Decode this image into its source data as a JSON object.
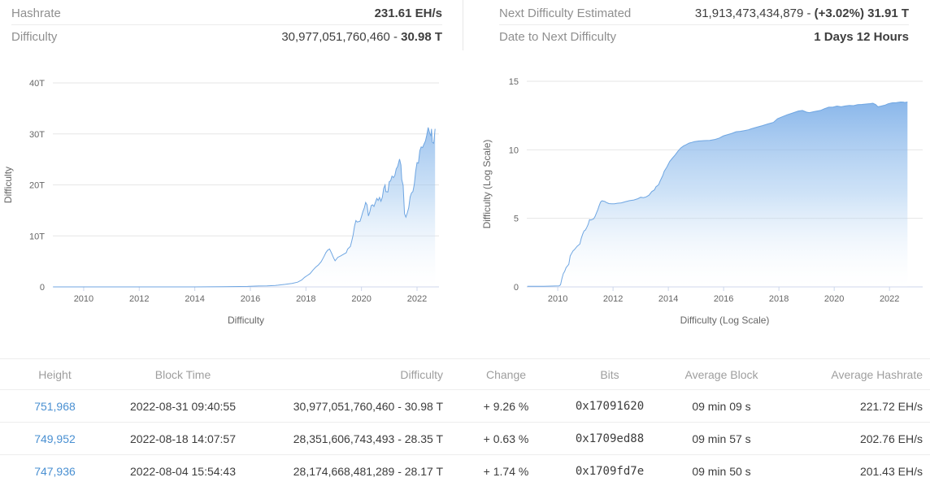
{
  "colors": {
    "accent_link": "#4a90d2",
    "positive_green": "#28a245",
    "chart_line": "#6fa6e2",
    "chart_fill_top": "#68a1e4",
    "chart_fill_mid": "#9ec6ef",
    "chart_fill_bottom": "#ffffff",
    "grid": "#e6e6e6",
    "axis_line": "#ccd6eb",
    "tick_text": "#666666",
    "label_gray": "#8f8f8f",
    "value_dark": "#3e3e3e"
  },
  "stats_left": {
    "rows": [
      {
        "label": "Hashrate",
        "value_plain": "",
        "value_bold": "231.61 EH/s"
      },
      {
        "label": "Difficulty",
        "value_plain": "30,977,051,760,460 - ",
        "value_bold": "30.98 T"
      }
    ]
  },
  "stats_right": {
    "rows": [
      {
        "label": "Next Difficulty Estimated",
        "value_plain": "31,913,473,434,879 - ",
        "value_bold": "(+3.02%) 31.91 T"
      },
      {
        "label": "Date to Next Difficulty",
        "value_plain": "",
        "value_bold": "1 Days 12 Hours"
      }
    ]
  },
  "chart_data": [
    {
      "type": "area",
      "title": "Difficulty",
      "xlabel": "Difficulty",
      "ylabel": "Difficulty",
      "grid": true,
      "legend": "none",
      "xlim": [
        2008.89,
        2022.79
      ],
      "ylim": [
        0,
        40
      ],
      "xticks": [
        2010,
        2012,
        2014,
        2016,
        2018,
        2020,
        2022
      ],
      "yticks": [
        {
          "v": 0,
          "label": "0"
        },
        {
          "v": 10,
          "label": "10T"
        },
        {
          "v": 20,
          "label": "20T"
        },
        {
          "v": 30,
          "label": "30T"
        },
        {
          "v": 40,
          "label": "40T"
        }
      ],
      "y_unit": "T (trillions of difficulty)",
      "points": [
        [
          2008.9,
          0
        ],
        [
          2010,
          0
        ],
        [
          2011,
          0
        ],
        [
          2012,
          0
        ],
        [
          2013,
          0
        ],
        [
          2014,
          0
        ],
        [
          2015,
          0.04
        ],
        [
          2015.9,
          0.09
        ],
        [
          2016.0,
          0.12
        ],
        [
          2016.3,
          0.17
        ],
        [
          2016.6,
          0.21
        ],
        [
          2016.9,
          0.28
        ],
        [
          2017.0,
          0.34
        ],
        [
          2017.25,
          0.5
        ],
        [
          2017.5,
          0.68
        ],
        [
          2017.7,
          0.92
        ],
        [
          2017.85,
          1.35
        ],
        [
          2017.95,
          1.87
        ],
        [
          2018.05,
          2.23
        ],
        [
          2018.15,
          2.6
        ],
        [
          2018.25,
          3.29
        ],
        [
          2018.35,
          3.85
        ],
        [
          2018.45,
          4.31
        ],
        [
          2018.55,
          4.94
        ],
        [
          2018.65,
          5.95
        ],
        [
          2018.72,
          6.73
        ],
        [
          2018.78,
          7.18
        ],
        [
          2018.85,
          7.45
        ],
        [
          2018.92,
          6.65
        ],
        [
          2019.0,
          5.62
        ],
        [
          2019.05,
          5.11
        ],
        [
          2019.15,
          5.8
        ],
        [
          2019.25,
          6.07
        ],
        [
          2019.35,
          6.39
        ],
        [
          2019.45,
          6.7
        ],
        [
          2019.5,
          7.41
        ],
        [
          2019.6,
          7.93
        ],
        [
          2019.65,
          9.01
        ],
        [
          2019.7,
          10.18
        ],
        [
          2019.75,
          11.89
        ],
        [
          2019.8,
          13.0
        ],
        [
          2019.85,
          12.72
        ],
        [
          2019.95,
          12.88
        ],
        [
          2020.0,
          13.8
        ],
        [
          2020.05,
          14.78
        ],
        [
          2020.1,
          15.47
        ],
        [
          2020.15,
          16.55
        ],
        [
          2020.2,
          16.1
        ],
        [
          2020.25,
          13.91
        ],
        [
          2020.3,
          14.72
        ],
        [
          2020.35,
          15.96
        ],
        [
          2020.4,
          16.1
        ],
        [
          2020.45,
          15.78
        ],
        [
          2020.55,
          17.35
        ],
        [
          2020.6,
          16.95
        ],
        [
          2020.65,
          17.56
        ],
        [
          2020.7,
          16.79
        ],
        [
          2020.75,
          17.56
        ],
        [
          2020.8,
          19.31
        ],
        [
          2020.85,
          19.99
        ],
        [
          2020.88,
          18.67
        ],
        [
          2020.95,
          18.6
        ],
        [
          2021.0,
          20.61
        ],
        [
          2021.05,
          20.82
        ],
        [
          2021.1,
          21.72
        ],
        [
          2021.15,
          21.43
        ],
        [
          2021.2,
          21.87
        ],
        [
          2021.25,
          23.14
        ],
        [
          2021.3,
          23.58
        ],
        [
          2021.37,
          25.05
        ],
        [
          2021.42,
          23.89
        ],
        [
          2021.45,
          21.05
        ],
        [
          2021.5,
          19.93
        ],
        [
          2021.55,
          14.36
        ],
        [
          2021.6,
          13.67
        ],
        [
          2021.65,
          14.5
        ],
        [
          2021.7,
          15.56
        ],
        [
          2021.75,
          17.62
        ],
        [
          2021.8,
          18.42
        ],
        [
          2021.85,
          18.67
        ],
        [
          2021.9,
          20.08
        ],
        [
          2021.95,
          22.67
        ],
        [
          2022.0,
          24.37
        ],
        [
          2022.05,
          24.27
        ],
        [
          2022.1,
          26.69
        ],
        [
          2022.15,
          27.45
        ],
        [
          2022.2,
          27.31
        ],
        [
          2022.25,
          27.97
        ],
        [
          2022.3,
          28.59
        ],
        [
          2022.35,
          29.79
        ],
        [
          2022.4,
          31.25
        ],
        [
          2022.45,
          30.28
        ],
        [
          2022.5,
          29.57
        ],
        [
          2022.52,
          30.98
        ],
        [
          2022.55,
          28.35
        ],
        [
          2022.6,
          28.17
        ],
        [
          2022.65,
          30.98
        ]
      ]
    },
    {
      "type": "area",
      "title": "Difficulty (Log Scale)",
      "xlabel": "Difficulty (Log Scale)",
      "ylabel": "Difficulty (Log Scale)",
      "grid": true,
      "legend": "none",
      "xlim": [
        2008.88,
        2023.2
      ],
      "ylim": [
        0,
        15
      ],
      "xticks": [
        2010,
        2012,
        2014,
        2016,
        2018,
        2020,
        2022
      ],
      "yticks": [
        {
          "v": 0,
          "label": "0"
        },
        {
          "v": 5,
          "label": "5"
        },
        {
          "v": 10,
          "label": "10"
        },
        {
          "v": 15,
          "label": "15"
        }
      ],
      "y_unit": "log10(difficulty)",
      "points": [
        [
          2008.9,
          0.05
        ],
        [
          2009.5,
          0.05
        ],
        [
          2010.05,
          0.08
        ],
        [
          2010.1,
          0.15
        ],
        [
          2010.15,
          0.6
        ],
        [
          2010.2,
          0.96
        ],
        [
          2010.25,
          1.13
        ],
        [
          2010.3,
          1.4
        ],
        [
          2010.4,
          1.65
        ],
        [
          2010.45,
          2.26
        ],
        [
          2010.55,
          2.62
        ],
        [
          2010.6,
          2.71
        ],
        [
          2010.7,
          2.96
        ],
        [
          2010.8,
          3.13
        ],
        [
          2010.85,
          3.54
        ],
        [
          2010.9,
          3.84
        ],
        [
          2010.95,
          4.08
        ],
        [
          2011.0,
          4.15
        ],
        [
          2011.05,
          4.34
        ],
        [
          2011.1,
          4.56
        ],
        [
          2011.15,
          4.91
        ],
        [
          2011.2,
          4.88
        ],
        [
          2011.3,
          4.97
        ],
        [
          2011.35,
          5.14
        ],
        [
          2011.4,
          5.39
        ],
        [
          2011.45,
          5.64
        ],
        [
          2011.5,
          5.94
        ],
        [
          2011.55,
          6.19
        ],
        [
          2011.6,
          6.28
        ],
        [
          2011.7,
          6.24
        ],
        [
          2011.75,
          6.17
        ],
        [
          2011.85,
          6.08
        ],
        [
          2011.95,
          6.06
        ],
        [
          2012.05,
          6.06
        ],
        [
          2012.15,
          6.1
        ],
        [
          2012.3,
          6.13
        ],
        [
          2012.45,
          6.22
        ],
        [
          2012.6,
          6.29
        ],
        [
          2012.75,
          6.34
        ],
        [
          2012.9,
          6.43
        ],
        [
          2013.0,
          6.54
        ],
        [
          2013.1,
          6.51
        ],
        [
          2013.2,
          6.57
        ],
        [
          2013.3,
          6.69
        ],
        [
          2013.4,
          6.95
        ],
        [
          2013.5,
          7.08
        ],
        [
          2013.55,
          7.29
        ],
        [
          2013.65,
          7.46
        ],
        [
          2013.7,
          7.71
        ],
        [
          2013.8,
          8.13
        ],
        [
          2013.85,
          8.43
        ],
        [
          2013.95,
          8.75
        ],
        [
          2014.0,
          8.95
        ],
        [
          2014.05,
          9.15
        ],
        [
          2014.15,
          9.4
        ],
        [
          2014.25,
          9.63
        ],
        [
          2014.35,
          9.91
        ],
        [
          2014.45,
          10.13
        ],
        [
          2014.55,
          10.28
        ],
        [
          2014.65,
          10.38
        ],
        [
          2014.75,
          10.49
        ],
        [
          2014.85,
          10.54
        ],
        [
          2014.95,
          10.6
        ],
        [
          2015.1,
          10.64
        ],
        [
          2015.3,
          10.67
        ],
        [
          2015.5,
          10.69
        ],
        [
          2015.7,
          10.76
        ],
        [
          2015.85,
          10.86
        ],
        [
          2015.95,
          10.97
        ],
        [
          2016.0,
          11.02
        ],
        [
          2016.15,
          11.11
        ],
        [
          2016.3,
          11.2
        ],
        [
          2016.45,
          11.32
        ],
        [
          2016.6,
          11.35
        ],
        [
          2016.75,
          11.4
        ],
        [
          2016.9,
          11.46
        ],
        [
          2017.0,
          11.53
        ],
        [
          2017.2,
          11.65
        ],
        [
          2017.4,
          11.76
        ],
        [
          2017.6,
          11.89
        ],
        [
          2017.8,
          12.0
        ],
        [
          2017.95,
          12.27
        ],
        [
          2018.1,
          12.4
        ],
        [
          2018.3,
          12.56
        ],
        [
          2018.5,
          12.69
        ],
        [
          2018.7,
          12.83
        ],
        [
          2018.85,
          12.87
        ],
        [
          2019.0,
          12.75
        ],
        [
          2019.1,
          12.71
        ],
        [
          2019.3,
          12.8
        ],
        [
          2019.5,
          12.87
        ],
        [
          2019.65,
          13.0
        ],
        [
          2019.8,
          13.11
        ],
        [
          2019.95,
          13.11
        ],
        [
          2020.1,
          13.19
        ],
        [
          2020.25,
          13.14
        ],
        [
          2020.4,
          13.2
        ],
        [
          2020.55,
          13.24
        ],
        [
          2020.7,
          13.22
        ],
        [
          2020.85,
          13.3
        ],
        [
          2021.0,
          13.31
        ],
        [
          2021.15,
          13.34
        ],
        [
          2021.3,
          13.37
        ],
        [
          2021.4,
          13.4
        ],
        [
          2021.5,
          13.3
        ],
        [
          2021.58,
          13.14
        ],
        [
          2021.7,
          13.19
        ],
        [
          2021.85,
          13.27
        ],
        [
          2021.95,
          13.36
        ],
        [
          2022.1,
          13.43
        ],
        [
          2022.25,
          13.44
        ],
        [
          2022.4,
          13.49
        ],
        [
          2022.5,
          13.48
        ],
        [
          2022.55,
          13.45
        ],
        [
          2022.65,
          13.49
        ]
      ]
    }
  ],
  "table": {
    "columns": [
      {
        "key": "height",
        "label": "Height",
        "align": "center"
      },
      {
        "key": "block_time",
        "label": "Block Time",
        "align": "center"
      },
      {
        "key": "difficulty",
        "label": "Difficulty",
        "align": "right"
      },
      {
        "key": "change",
        "label": "Change",
        "align": "center"
      },
      {
        "key": "bits",
        "label": "Bits",
        "align": "center"
      },
      {
        "key": "avg_block",
        "label": "Average Block",
        "align": "center"
      },
      {
        "key": "avg_hashrate",
        "label": "Average Hashrate",
        "align": "right"
      }
    ],
    "rows": [
      {
        "height": "751,968",
        "block_time": "2022-08-31 09:40:55",
        "difficulty": "30,977,051,760,460 - 30.98 T",
        "change": "+ 9.26 %",
        "bits": "0x17091620",
        "avg_block": "09 min 09 s",
        "avg_hashrate": "221.72 EH/s"
      },
      {
        "height": "749,952",
        "block_time": "2022-08-18 14:07:57",
        "difficulty": "28,351,606,743,493 - 28.35 T",
        "change": "+ 0.63 %",
        "bits": "0x1709ed88",
        "avg_block": "09 min 57 s",
        "avg_hashrate": "202.76 EH/s"
      },
      {
        "height": "747,936",
        "block_time": "2022-08-04 15:54:43",
        "difficulty": "28,174,668,481,289 - 28.17 T",
        "change": "+ 1.74 %",
        "bits": "0x1709fd7e",
        "avg_block": "09 min 50 s",
        "avg_hashrate": "201.43 EH/s"
      }
    ]
  }
}
